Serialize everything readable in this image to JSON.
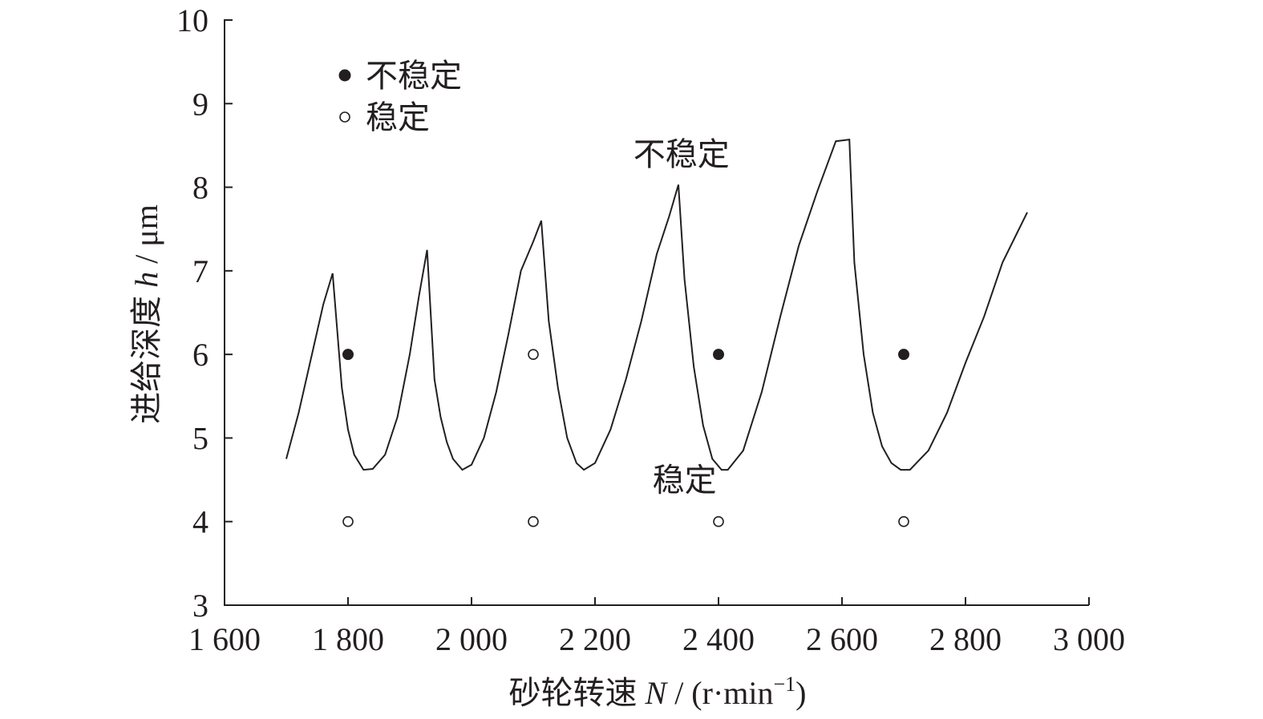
{
  "chart_data": {
    "type": "scatter",
    "xlabel": {
      "prefix": "砂轮转速 ",
      "symbol": "N",
      "suffix": " / (r·min",
      "superscript": "−1",
      "close": ")"
    },
    "ylabel": {
      "prefix": "进给深度 ",
      "symbol": "h",
      "suffix": " / μm"
    },
    "xlim": [
      1600,
      3000
    ],
    "ylim": [
      3,
      10
    ],
    "x_ticks": [
      1600,
      1800,
      2000,
      2200,
      2400,
      2600,
      2800,
      3000
    ],
    "x_tick_labels": [
      "1 600",
      "1 800",
      "2 000",
      "2 200",
      "2 400",
      "2 600",
      "2 800",
      "3 000"
    ],
    "y_ticks": [
      3,
      4,
      5,
      6,
      7,
      8,
      9,
      10
    ],
    "y_tick_labels": [
      "3",
      "4",
      "5",
      "6",
      "7",
      "8",
      "9",
      "10"
    ],
    "grid": false,
    "legend_position": "top-left",
    "series": [
      {
        "name": "不稳定",
        "marker": "filled-circle",
        "color": "#231f20",
        "x": [
          1800,
          2400,
          2700
        ],
        "y": [
          6,
          6,
          6
        ]
      },
      {
        "name": "稳定",
        "marker": "open-circle",
        "color": "#231f20",
        "x": [
          2100,
          1800,
          2100,
          2400,
          2700
        ],
        "y": [
          6,
          4,
          4,
          4,
          4
        ]
      }
    ],
    "stability_boundary": {
      "type": "line",
      "color": "#231f20",
      "x": [
        1700,
        1720,
        1740,
        1760,
        1775,
        1790,
        1800,
        1810,
        1825,
        1840,
        1860,
        1880,
        1900,
        1915,
        1928,
        1940,
        1950,
        1960,
        1970,
        1985,
        2000,
        2020,
        2040,
        2060,
        2080,
        2100,
        2113,
        2125,
        2140,
        2155,
        2170,
        2182,
        2200,
        2225,
        2250,
        2275,
        2300,
        2320,
        2335,
        2345,
        2360,
        2375,
        2390,
        2405,
        2415,
        2440,
        2470,
        2500,
        2530,
        2560,
        2590,
        2612,
        2620,
        2635,
        2650,
        2665,
        2680,
        2695,
        2710,
        2740,
        2770,
        2800,
        2830,
        2860,
        2900
      ],
      "y": [
        4.75,
        5.3,
        5.95,
        6.6,
        6.97,
        5.6,
        5.1,
        4.8,
        4.62,
        4.63,
        4.8,
        5.25,
        6.0,
        6.7,
        7.25,
        5.7,
        5.25,
        4.95,
        4.75,
        4.62,
        4.68,
        5.0,
        5.55,
        6.25,
        7.0,
        7.35,
        7.6,
        6.4,
        5.6,
        5.0,
        4.7,
        4.62,
        4.7,
        5.1,
        5.7,
        6.4,
        7.2,
        7.65,
        8.03,
        6.9,
        5.85,
        5.15,
        4.75,
        4.62,
        4.62,
        4.85,
        5.55,
        6.45,
        7.3,
        7.95,
        8.55,
        8.57,
        7.1,
        6.0,
        5.3,
        4.9,
        4.7,
        4.62,
        4.62,
        4.85,
        5.3,
        5.9,
        6.45,
        7.1,
        7.7
      ]
    },
    "annotations": [
      {
        "text": "不稳定",
        "x": 2340,
        "y": 8.4
      },
      {
        "text": "稳定",
        "x": 2345,
        "y": 4.5
      }
    ]
  }
}
